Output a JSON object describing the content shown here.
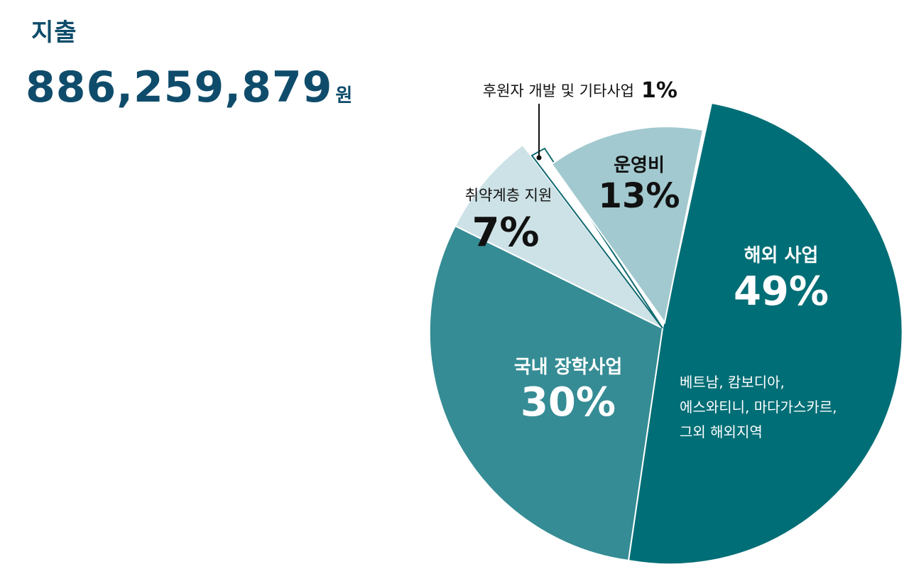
{
  "header": {
    "title": "지출",
    "amount": "886,259,879",
    "amount_unit": "원"
  },
  "chart_data": {
    "type": "pie",
    "slices": [
      {
        "name": "해외 사업",
        "percent_label": "49%",
        "value": 49,
        "color": "#006e76",
        "detail": [
          "베트남, 캄보디아,",
          "에스와티니, 마다가스카르,",
          "그외 해외지역"
        ]
      },
      {
        "name": "국내 장학사업",
        "percent_label": "30%",
        "value": 30,
        "color": "#358c94"
      },
      {
        "name": "취약계층  지원",
        "percent_label": "7%",
        "value": 7,
        "color": "#cde2e6"
      },
      {
        "name": "후원자 개발 및 기타사업",
        "percent_label": "1%",
        "value": 1,
        "color": "#ffffff"
      },
      {
        "name": "운영비",
        "percent_label": "13%",
        "value": 13,
        "color": "#a2c9cf"
      }
    ]
  }
}
